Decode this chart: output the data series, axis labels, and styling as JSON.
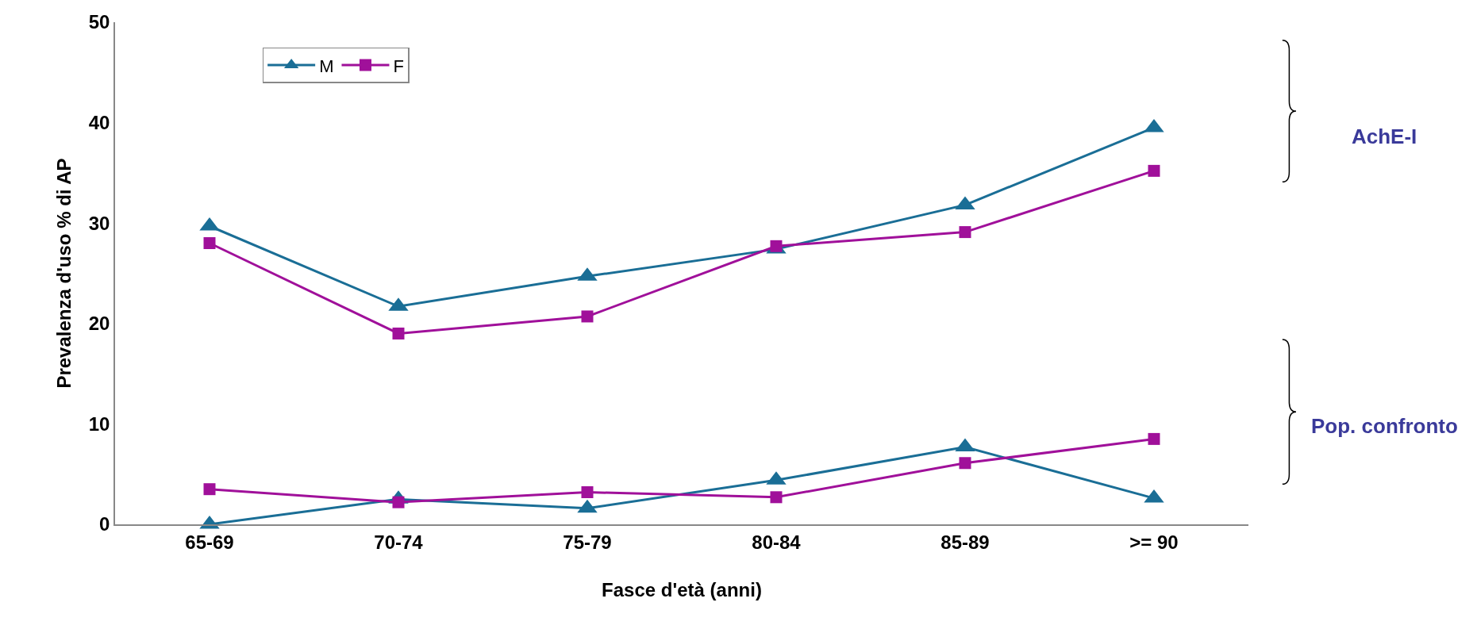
{
  "chart_data": {
    "type": "line",
    "xlabel": "Fasce d'età (anni)",
    "ylabel": "Prevalenza d'uso % di AP",
    "categories": [
      "65-69",
      "70-74",
      "75-79",
      "80-84",
      "85-89",
      ">= 90"
    ],
    "series": [
      {
        "name": "M",
        "color": "#1a6e96",
        "marker": "triangle",
        "values": [
          29.7,
          21.7,
          24.7,
          27.4,
          31.8,
          39.5
        ]
      },
      {
        "name": "F",
        "color": "#a0109a",
        "marker": "square",
        "values": [
          28.0,
          19.0,
          20.7,
          27.7,
          29.1,
          35.2
        ]
      },
      {
        "color": "#1a6e96",
        "marker": "triangle",
        "values": [
          0.0,
          2.5,
          1.6,
          4.4,
          7.7,
          2.6
        ]
      },
      {
        "color": "#a0109a",
        "marker": "square",
        "values": [
          3.5,
          2.2,
          3.2,
          2.7,
          6.1,
          8.5
        ]
      }
    ],
    "ylim": [
      0,
      50
    ],
    "yticks": [
      0,
      10,
      20,
      30,
      40,
      50
    ],
    "legend": "top left",
    "line_style": "solid",
    "annotations": [
      "AchE-I",
      "Pop. confronto"
    ]
  }
}
